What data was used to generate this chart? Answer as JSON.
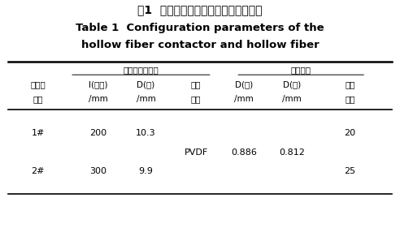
{
  "title_cn": "表1  中空纤维膜接触器及中空纤维参数",
  "title_en_line1": "Table 1  Configuration parameters of the",
  "title_en_line2": "hollow fiber contactor and hollow fiber",
  "group1_header": "中空纤维接触器",
  "group2_header": "中空纤维",
  "row_header_line1": "接触器",
  "row_header_line2": "型号",
  "col_headers_line1": [
    "l(有效)",
    "D(内)",
    "薄膜",
    "D(外)",
    "D(内)",
    "膜丝"
  ],
  "col_headers_line2": [
    "/mm",
    "/mm",
    "材料",
    "/mm",
    "/mm",
    "根数"
  ],
  "rows": [
    {
      "id": "1#",
      "l": "200",
      "D_inner_c": "10.3",
      "film": "",
      "D_outer": "",
      "D_inner_f": "",
      "count": "20"
    },
    {
      "id": "2#",
      "l": "300",
      "D_inner_c": "9.9",
      "film": "PVDF",
      "D_outer": "0.886",
      "D_inner_f": "0.812",
      "count": "25"
    }
  ],
  "bg_color": "#ffffff",
  "text_color": "#000000",
  "figsize": [
    4.92,
    2.81
  ],
  "dpi": 100
}
